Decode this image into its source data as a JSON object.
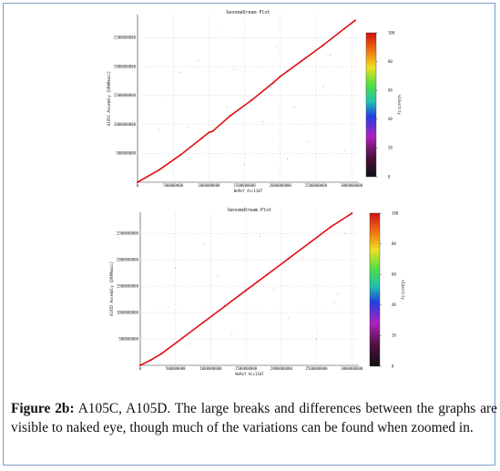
{
  "figure": {
    "caption_label": "Figure 2b:",
    "caption_text": " A105C, A105D. The large breaks and differences between the graphs are visible to naked eye, though much of the variations can be found when zoomed in."
  },
  "chart_data": [
    {
      "type": "scatter",
      "title": "GenomeDream Plot",
      "xlabel": "WoRef Acc1107",
      "ylabel": "A105C Assembly [DRAMmacc]",
      "colorbar_label": "%Identity",
      "colorbar_ticks": [
        "100",
        "80",
        "60",
        "40",
        "20",
        "0"
      ],
      "xticks": [
        "0",
        "500000000",
        "1000000000",
        "1500000000",
        "2000000000",
        "2500000000",
        "3000000000"
      ],
      "yticks": [
        "500000000",
        "1000000000",
        "1500000000",
        "2000000000",
        "2500000000"
      ],
      "xlim": [
        0,
        3100000000
      ],
      "ylim": [
        0,
        2900000000
      ],
      "grid": true,
      "series": [
        {
          "color": "#e01010",
          "points": [
            [
              0,
              0
            ],
            [
              300000000,
              210000000
            ],
            [
              600000000,
              470000000
            ],
            [
              900000000,
              760000000
            ],
            [
              1000000000,
              860000000
            ],
            [
              1050000000,
              880000000
            ],
            [
              1300000000,
              1150000000
            ],
            [
              1600000000,
              1420000000
            ],
            [
              1900000000,
              1720000000
            ],
            [
              2000000000,
              1830000000
            ],
            [
              2300000000,
              2100000000
            ],
            [
              2600000000,
              2370000000
            ],
            [
              2900000000,
              2660000000
            ],
            [
              3050000000,
              2800000000
            ]
          ]
        }
      ],
      "scatter_points": [
        [
          1750000000,
          1050000000
        ],
        [
          2400000000,
          700000000
        ],
        [
          600000000,
          1900000000
        ],
        [
          850000000,
          2100000000
        ],
        [
          1250000000,
          1300000000
        ],
        [
          2600000000,
          1650000000
        ],
        [
          2900000000,
          550000000
        ],
        [
          400000000,
          1500000000
        ],
        [
          1950000000,
          2350000000
        ],
        [
          1500000000,
          300000000
        ],
        [
          2200000000,
          1300000000
        ],
        [
          700000000,
          950000000
        ],
        [
          2700000000,
          2200000000
        ],
        [
          1100000000,
          2600000000
        ],
        [
          300000000,
          900000000
        ],
        [
          2100000000,
          400000000
        ],
        [
          1350000000,
          1950000000
        ]
      ]
    },
    {
      "type": "scatter",
      "title": "GenomeDream Plot",
      "xlabel": "WoRef Acc1107",
      "ylabel": "A105D Assembly [DRAMmacc]",
      "colorbar_label": "%Identity",
      "colorbar_ticks": [
        "100",
        "80",
        "60",
        "40",
        "20",
        "0"
      ],
      "xticks": [
        "0",
        "500000000",
        "1000000000",
        "1500000000",
        "2000000000",
        "2500000000",
        "3000000000"
      ],
      "yticks": [
        "500000000",
        "1000000000",
        "1500000000",
        "2000000000",
        "2500000000"
      ],
      "xlim": [
        0,
        3100000000
      ],
      "ylim": [
        0,
        2900000000
      ],
      "grid": true,
      "series": [
        {
          "color": "#e01010",
          "points": [
            [
              0,
              0
            ],
            [
              150000000,
              100000000
            ],
            [
              300000000,
              220000000
            ],
            [
              600000000,
              520000000
            ],
            [
              900000000,
              820000000
            ],
            [
              1200000000,
              1120000000
            ],
            [
              1500000000,
              1420000000
            ],
            [
              1800000000,
              1720000000
            ],
            [
              2100000000,
              2020000000
            ],
            [
              2400000000,
              2320000000
            ],
            [
              2700000000,
              2620000000
            ],
            [
              3000000000,
              2880000000
            ]
          ]
        }
      ],
      "scatter_points": [
        [
          2800000000,
          1350000000
        ],
        [
          2750000000,
          1200000000
        ],
        [
          1900000000,
          1450000000
        ],
        [
          500000000,
          1850000000
        ],
        [
          2300000000,
          2050000000
        ],
        [
          1300000000,
          600000000
        ],
        [
          900000000,
          2300000000
        ],
        [
          2500000000,
          500000000
        ],
        [
          1700000000,
          2450000000
        ],
        [
          400000000,
          1100000000
        ],
        [
          2100000000,
          900000000
        ],
        [
          1100000000,
          1700000000
        ],
        [
          2900000000,
          2500000000
        ],
        [
          700000000,
          400000000
        ]
      ]
    }
  ]
}
